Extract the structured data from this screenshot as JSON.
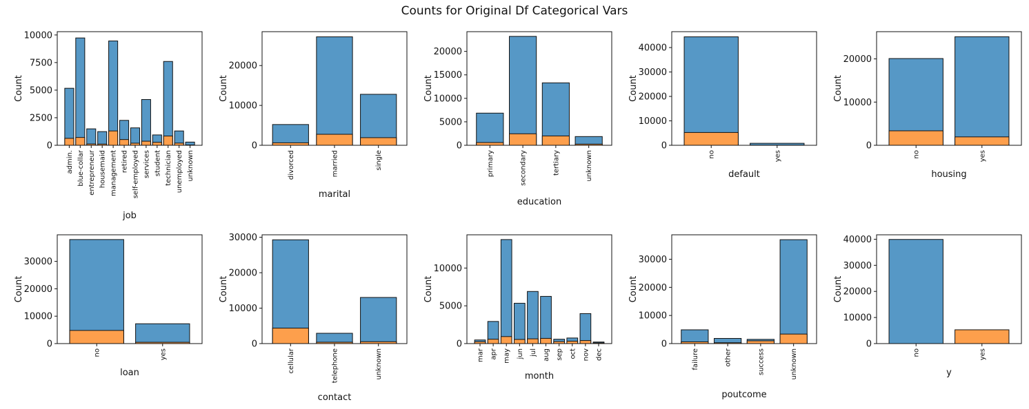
{
  "figure": {
    "title": "Counts for Original Df Categorical Vars",
    "colors": {
      "series0": "#5698c6",
      "series1": "#fd9f4c",
      "edge": "#111111"
    }
  },
  "chart_data": [
    {
      "type": "bar",
      "stacked": "overlay",
      "xlabel": "job",
      "ylabel": "Count",
      "categories": [
        "admin.",
        "blue-collar",
        "entrepreneur",
        "housemaid",
        "management",
        "retired",
        "self-employed",
        "services",
        "student",
        "technician",
        "unemployed",
        "unknown"
      ],
      "yticks": [
        0,
        2500,
        5000,
        7500,
        10000
      ],
      "ylim": [
        0,
        10300
      ],
      "series": [
        {
          "values": [
            5170,
            9730,
            1490,
            1240,
            9460,
            2260,
            1580,
            4150,
            940,
            7600,
            1300,
            290
          ]
        },
        {
          "values": [
            630,
            710,
            120,
            110,
            1300,
            520,
            190,
            370,
            270,
            840,
            200,
            30
          ]
        }
      ]
    },
    {
      "type": "bar",
      "stacked": "overlay",
      "xlabel": "marital",
      "ylabel": "Count",
      "categories": [
        "divorced",
        "married",
        "single"
      ],
      "yticks": [
        0,
        10000,
        20000
      ],
      "ylim": [
        0,
        28500
      ],
      "series": [
        {
          "values": [
            5210,
            27210,
            12790
          ]
        },
        {
          "values": [
            620,
            2760,
            1910
          ]
        }
      ]
    },
    {
      "type": "bar",
      "stacked": "overlay",
      "xlabel": "education",
      "ylabel": "Count",
      "categories": [
        "primary",
        "secondary",
        "tertiary",
        "unknown"
      ],
      "yticks": [
        0,
        5000,
        10000,
        15000,
        20000
      ],
      "ylim": [
        0,
        24200
      ],
      "series": [
        {
          "values": [
            6850,
            23200,
            13300,
            1860
          ]
        },
        {
          "values": [
            590,
            2450,
            1990,
            250
          ]
        }
      ]
    },
    {
      "type": "bar",
      "stacked": "overlay",
      "xlabel": "default",
      "ylabel": "Count",
      "categories": [
        "no",
        "yes"
      ],
      "yticks": [
        0,
        10000,
        20000,
        30000,
        40000
      ],
      "ylim": [
        0,
        46500
      ],
      "series": [
        {
          "values": [
            44400,
            815
          ]
        },
        {
          "values": [
            5240,
            52
          ]
        }
      ]
    },
    {
      "type": "bar",
      "stacked": "overlay",
      "xlabel": "housing",
      "ylabel": "Count",
      "categories": [
        "no",
        "yes"
      ],
      "yticks": [
        0,
        10000,
        20000
      ],
      "ylim": [
        0,
        26300
      ],
      "series": [
        {
          "values": [
            20080,
            25130
          ]
        },
        {
          "values": [
            3350,
            1940
          ]
        }
      ]
    },
    {
      "type": "bar",
      "stacked": "overlay",
      "xlabel": "loan",
      "ylabel": "Count",
      "categories": [
        "no",
        "yes"
      ],
      "yticks": [
        0,
        10000,
        20000,
        30000
      ],
      "ylim": [
        0,
        39700
      ],
      "series": [
        {
          "values": [
            37970,
            7240
          ]
        },
        {
          "values": [
            4800,
            480
          ]
        }
      ]
    },
    {
      "type": "bar",
      "stacked": "overlay",
      "xlabel": "contact",
      "ylabel": "Count",
      "categories": [
        "cellular",
        "telephone",
        "unknown"
      ],
      "yticks": [
        0,
        10000,
        20000,
        30000
      ],
      "ylim": [
        0,
        30700
      ],
      "series": [
        {
          "values": [
            29290,
            2910,
            13020
          ]
        },
        {
          "values": [
            4370,
            390,
            530
          ]
        }
      ]
    },
    {
      "type": "bar",
      "stacked": "overlay",
      "xlabel": "month",
      "ylabel": "Count",
      "categories": [
        "mar",
        "apr",
        "may",
        "jun",
        "jul",
        "aug",
        "sep",
        "oct",
        "nov",
        "dec"
      ],
      "yticks": [
        0,
        5000,
        10000
      ],
      "ylim": [
        0,
        14400
      ],
      "series": [
        {
          "values": [
            480,
            2930,
            13770,
            5340,
            6900,
            6250,
            580,
            740,
            3970,
            210
          ]
        },
        {
          "values": [
            250,
            580,
            930,
            550,
            630,
            690,
            270,
            320,
            400,
            100
          ]
        }
      ]
    },
    {
      "type": "bar",
      "stacked": "overlay",
      "xlabel": "poutcome",
      "ylabel": "Count",
      "categories": [
        "failure",
        "other",
        "success",
        "unknown"
      ],
      "yticks": [
        0,
        10000,
        20000,
        30000
      ],
      "ylim": [
        0,
        38700
      ],
      "series": [
        {
          "values": [
            4900,
            1840,
            1510,
            36960
          ]
        },
        {
          "values": [
            620,
            310,
            980,
            3390
          ]
        }
      ]
    },
    {
      "type": "bar",
      "stacked": "overlay",
      "xlabel": "y",
      "ylabel": "Count",
      "categories": [
        "no",
        "yes"
      ],
      "yticks": [
        0,
        10000,
        20000,
        30000,
        40000
      ],
      "ylim": [
        0,
        41700
      ],
      "series": [
        {
          "values": [
            39920,
            0
          ]
        },
        {
          "values": [
            0,
            5290
          ]
        }
      ]
    }
  ]
}
